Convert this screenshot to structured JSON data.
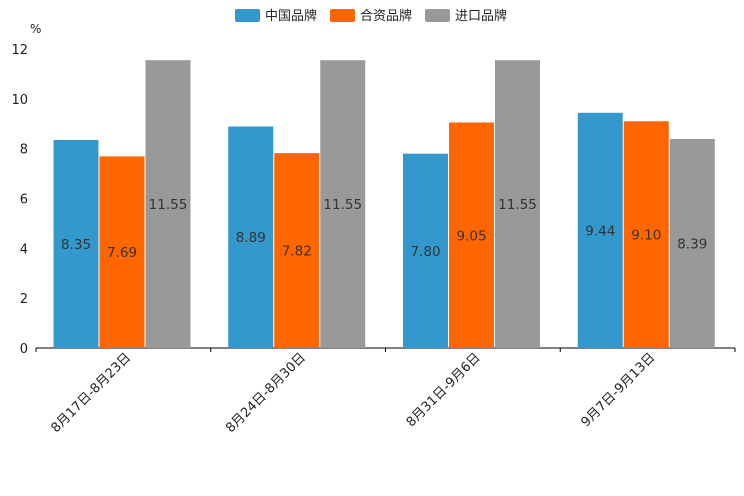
{
  "chart_data": {
    "type": "bar",
    "unit": "%",
    "categories": [
      "8月17日-8月23日",
      "8月24日-8月30日",
      "8月31日-9月6日",
      "9月7日-9月13日"
    ],
    "series": [
      {
        "name": "中国品牌",
        "color": "#3399cc",
        "values": [
          8.35,
          8.89,
          7.8,
          9.44
        ],
        "labels": [
          "8.35",
          "8.89",
          "7.80",
          "9.44"
        ]
      },
      {
        "name": "合资品牌",
        "color": "#ff6600",
        "values": [
          7.69,
          7.82,
          9.05,
          9.1
        ],
        "labels": [
          "7.69",
          "7.82",
          "9.05",
          "9.10"
        ]
      },
      {
        "name": "进口品牌",
        "color": "#999999",
        "values": [
          11.55,
          11.55,
          11.55,
          8.39
        ],
        "labels": [
          "11.55",
          "11.55",
          "11.55",
          "8.39"
        ]
      }
    ],
    "ylim": [
      0,
      12
    ],
    "yticks": [
      "0",
      "2",
      "4",
      "6",
      "8",
      "10",
      "12"
    ],
    "legend_position": "top-center",
    "grid": false
  }
}
